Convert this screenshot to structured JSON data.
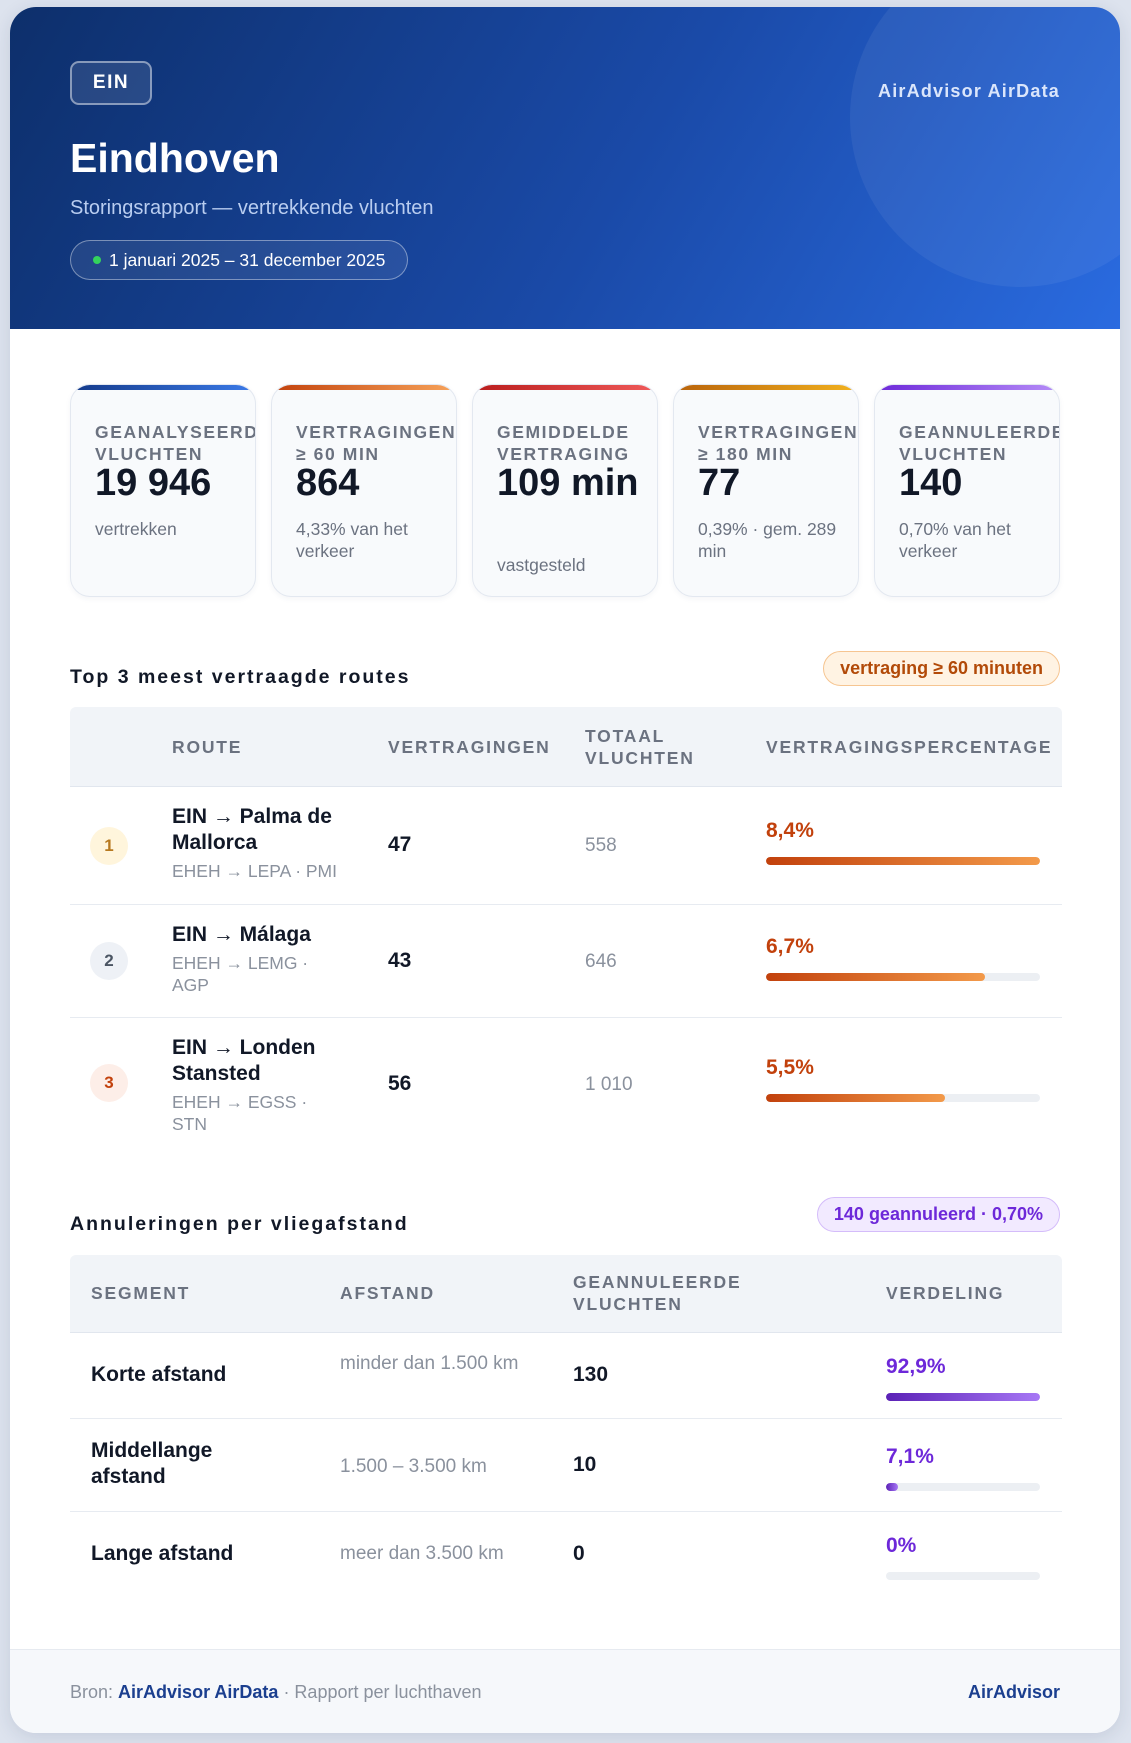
{
  "header": {
    "airport_code": "EIN",
    "brand": "AirAdvisor AirData",
    "city": "Eindhoven",
    "subtitle": "Storingsrapport — vertrekkende vluchten",
    "period": "1 januari 2025 – 31 december 2025"
  },
  "kpis": [
    {
      "label": "Geanalyseerde\nvluchten",
      "value": "19 946",
      "note": "vertrekken",
      "accent": "#1e4fb5"
    },
    {
      "label": "Vertragingen\n≥ 60 min",
      "value": "864",
      "note": "4,33% van het verkeer",
      "accent": "#e8661c"
    },
    {
      "label": "Gemiddelde\nvertraging",
      "value": "109 min",
      "note": "vastgesteld",
      "accent": "#d42a2a"
    },
    {
      "label": "Vertragingen\n≥ 180 min",
      "value": "77",
      "note": "0,39% · gem. 289 min",
      "accent": "#d9890f"
    },
    {
      "label": "Geannuleerde\nvluchten",
      "value": "140",
      "note": "0,70% van het verkeer",
      "accent": "#7c3aed"
    }
  ],
  "routes": {
    "title": "Top 3 meest vertraagde routes",
    "badge": "vertraging ≥ 60 minuten",
    "columns": [
      "Route",
      "Vertragingen",
      "Totaal\nvluchten",
      "Vertragingspercentage"
    ],
    "rows": [
      {
        "rank": "1",
        "name": "EIN → Palma de Mallorca",
        "codes": "EHEH → LEPA · PMI",
        "delays": "47",
        "total": "558",
        "pct_label": "8,4%",
        "pct": 8.4
      },
      {
        "rank": "2",
        "name": "EIN → Málaga",
        "codes": "EHEH → LEMG · AGP",
        "delays": "43",
        "total": "646",
        "pct_label": "6,7%",
        "pct": 6.7
      },
      {
        "rank": "3",
        "name": "EIN → Londen Stansted",
        "codes": "EHEH → EGSS · STN",
        "delays": "56",
        "total": "1 010",
        "pct_label": "5,5%",
        "pct": 5.5
      }
    ]
  },
  "cancellations": {
    "title": "Annuleringen per vliegafstand",
    "badge": "140 geannuleerd · 0,70%",
    "columns": [
      "Segment",
      "Afstand",
      "Geannuleerde\nvluchten",
      "Verdeling"
    ],
    "rows": [
      {
        "segment": "Korte afstand",
        "distance": "minder dan 1.500 km",
        "count": "130",
        "share_label": "92,9%",
        "share": 92.9
      },
      {
        "segment": "Middellange afstand",
        "distance": "1.500 – 3.500 km",
        "count": "10",
        "share_label": "7,1%",
        "share": 7.1
      },
      {
        "segment": "Lange afstand",
        "distance": "meer dan 3.500 km",
        "count": "0",
        "share_label": "0%",
        "share": 0
      }
    ]
  },
  "footer": {
    "source_prefix": "Bron:",
    "source_name": "AirAdvisor AirData",
    "source_suffix": "· Rapport per luchthaven",
    "brand": "AirAdvisor"
  },
  "colors": {
    "orange_accent": "#b24a08",
    "purple_accent": "#6d28d9"
  }
}
